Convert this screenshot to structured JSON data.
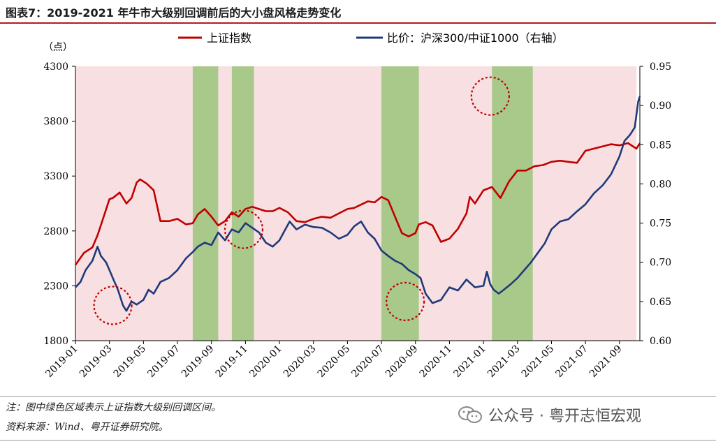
{
  "figure": {
    "title": "图表7：2019-2021 年牛市大级别回调前后的大小盘风格走势变化",
    "note": "注：图中绿色区域表示上证指数大级别回调区间。",
    "source": "资料来源：Wind、粤开证券研究院。",
    "watermark": "公众号 · 粤开志恒宏观"
  },
  "colors": {
    "index_line": "#c00000",
    "ratio_line": "#1f3a7a",
    "pink_band": "#f8e0e2",
    "green_band": "#a9c98a",
    "circle": "#c00000"
  },
  "chart_data": {
    "type": "line",
    "y_unit_label": "（点）",
    "x_tick_labels": [
      "2019-01",
      "2019-03",
      "2019-05",
      "2019-07",
      "2019-09",
      "2019-11",
      "2020-01",
      "2020-03",
      "2020-05",
      "2020-07",
      "2020-09",
      "2020-11",
      "2021-01",
      "2021-03",
      "2021-05",
      "2021-07",
      "2021-09"
    ],
    "x_range": [
      0,
      33.2
    ],
    "ylim_left": [
      1800,
      4300
    ],
    "y_ticks_left": [
      1800,
      2300,
      2800,
      3300,
      3800,
      4300
    ],
    "ylim_right": [
      0.6,
      0.95
    ],
    "y_ticks_right": [
      "0.60",
      "0.65",
      "0.70",
      "0.75",
      "0.80",
      "0.85",
      "0.90",
      "0.95"
    ],
    "shaded_background": "2019-01 to 2021-10",
    "correction_periods": [
      {
        "start": 6.9,
        "end": 8.4
      },
      {
        "start": 9.2,
        "end": 10.5
      },
      {
        "start": 18.0,
        "end": 20.2
      },
      {
        "start": 24.5,
        "end": 26.9
      }
    ],
    "highlight_circles": [
      {
        "x": 2.2,
        "y_right": 0.645
      },
      {
        "x": 9.9,
        "y_right": 0.742
      },
      {
        "x": 19.4,
        "y_right": 0.65
      },
      {
        "x": 24.4,
        "y_right": 0.912
      }
    ],
    "series": [
      {
        "name": "上证指数",
        "axis": "left",
        "x": [
          0,
          0.5,
          1,
          1.3,
          1.6,
          2,
          2.2,
          2.6,
          3,
          3.3,
          3.6,
          3.8,
          4.2,
          4.6,
          5,
          5.5,
          6,
          6.5,
          6.9,
          7.2,
          7.6,
          8,
          8.4,
          8.8,
          9.2,
          9.6,
          10,
          10.4,
          10.8,
          11.2,
          11.6,
          12,
          12.5,
          13,
          13.5,
          14,
          14.5,
          15,
          15.5,
          16,
          16.4,
          16.8,
          17.2,
          17.6,
          18,
          18.4,
          18.8,
          19.2,
          19.6,
          20,
          20.2,
          20.6,
          21,
          21.5,
          22,
          22.5,
          23,
          23.2,
          23.5,
          24,
          24.5,
          25,
          25.5,
          26,
          26.5,
          27,
          27.5,
          28,
          28.5,
          29,
          29.5,
          30,
          30.5,
          31,
          31.5,
          32,
          32.5,
          33,
          33.2
        ],
        "values": [
          2490,
          2600,
          2650,
          2760,
          2900,
          3090,
          3100,
          3150,
          3050,
          3100,
          3240,
          3270,
          3230,
          3170,
          2890,
          2890,
          2910,
          2860,
          2870,
          2950,
          3000,
          2930,
          2850,
          2890,
          2970,
          2930,
          3000,
          3020,
          3000,
          2980,
          2980,
          3010,
          2970,
          2890,
          2880,
          2910,
          2930,
          2920,
          2960,
          3000,
          3010,
          3040,
          3070,
          3060,
          3110,
          3080,
          2930,
          2780,
          2750,
          2780,
          2860,
          2880,
          2850,
          2700,
          2730,
          2820,
          2960,
          3110,
          3050,
          3170,
          3200,
          3100,
          3250,
          3350,
          3350,
          3390,
          3400,
          3430,
          3440,
          3430,
          3420,
          3530,
          3550,
          3570,
          3590,
          3580,
          3600,
          3550,
          3600
        ]
      },
      {
        "name": "比价：沪深300/中证1000（右轴）",
        "axis": "right",
        "x": [
          0,
          0.3,
          0.6,
          1,
          1.3,
          1.5,
          1.8,
          2,
          2.2,
          2.5,
          2.8,
          3,
          3.3,
          3.6,
          4,
          4.3,
          4.6,
          5,
          5.5,
          6,
          6.5,
          6.9,
          7.2,
          7.6,
          8,
          8.4,
          8.8,
          9.2,
          9.6,
          10,
          10.4,
          10.8,
          11.2,
          11.6,
          12,
          12.3,
          12.6,
          13,
          13.5,
          14,
          14.5,
          15,
          15.5,
          16,
          16.4,
          16.8,
          17.2,
          17.6,
          18,
          18.4,
          18.8,
          19.2,
          19.6,
          20,
          20.3,
          20.6,
          21,
          21.5,
          22,
          22.5,
          23,
          23.5,
          24,
          24.2,
          24.4,
          24.6,
          24.9,
          25.2,
          25.6,
          26,
          26.4,
          26.8,
          27.2,
          27.6,
          28,
          28.5,
          29,
          29.5,
          30,
          30.5,
          31,
          31.5,
          32,
          32.3,
          32.6,
          32.9,
          33.1,
          33.2
        ],
        "values": [
          0.668,
          0.675,
          0.69,
          0.702,
          0.72,
          0.708,
          0.7,
          0.69,
          0.68,
          0.665,
          0.645,
          0.638,
          0.65,
          0.646,
          0.652,
          0.665,
          0.66,
          0.675,
          0.68,
          0.69,
          0.705,
          0.713,
          0.72,
          0.725,
          0.722,
          0.738,
          0.728,
          0.742,
          0.738,
          0.75,
          0.744,
          0.738,
          0.725,
          0.72,
          0.728,
          0.74,
          0.752,
          0.742,
          0.748,
          0.745,
          0.744,
          0.738,
          0.73,
          0.735,
          0.746,
          0.752,
          0.738,
          0.73,
          0.715,
          0.708,
          0.702,
          0.698,
          0.69,
          0.685,
          0.68,
          0.66,
          0.648,
          0.652,
          0.668,
          0.664,
          0.678,
          0.668,
          0.67,
          0.688,
          0.672,
          0.665,
          0.66,
          0.665,
          0.672,
          0.68,
          0.69,
          0.7,
          0.712,
          0.724,
          0.742,
          0.752,
          0.755,
          0.765,
          0.774,
          0.788,
          0.798,
          0.812,
          0.835,
          0.855,
          0.862,
          0.872,
          0.905,
          0.912
        ]
      }
    ]
  }
}
